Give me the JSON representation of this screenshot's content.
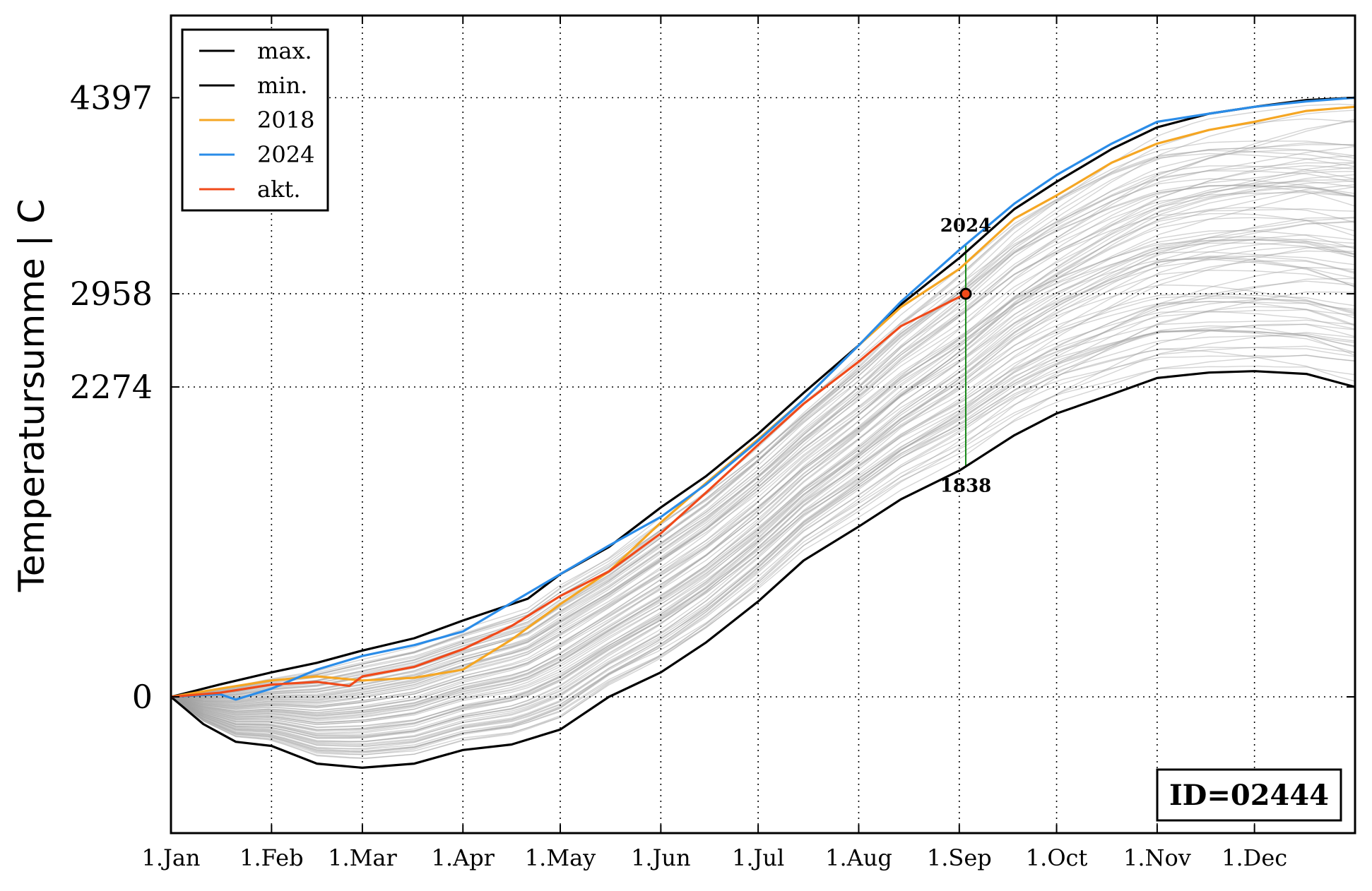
{
  "chart_data": {
    "type": "line",
    "title": "",
    "xlabel": "",
    "ylabel": "Temperatursumme | C",
    "x_ticks": [
      "1.Jan",
      "1.Feb",
      "1.Mar",
      "1.Apr",
      "1.May",
      "1.Jun",
      "1.Jul",
      "1.Aug",
      "1.Sep",
      "1.Oct",
      "1.Nov",
      "1.Dec"
    ],
    "x_tick_days": [
      0,
      31,
      59,
      90,
      120,
      151,
      181,
      212,
      243,
      273,
      304,
      334
    ],
    "x_range": [
      0,
      365
    ],
    "y_ticks": [
      0,
      2274,
      2958,
      4397
    ],
    "y_range": [
      -1000,
      5000
    ],
    "grid": "dotted",
    "legend_position": "top-left",
    "current_day": 245,
    "current_value": 2958,
    "annotations": {
      "top_label": "2024",
      "bottom_label": "1838"
    },
    "id_label": "ID=02444",
    "background_series_color": "#a0a0a0",
    "series": [
      {
        "name": "max.",
        "color": "#000000",
        "points": [
          [
            0,
            0
          ],
          [
            15,
            90
          ],
          [
            31,
            180
          ],
          [
            45,
            250
          ],
          [
            59,
            340
          ],
          [
            75,
            430
          ],
          [
            90,
            560
          ],
          [
            100,
            640
          ],
          [
            110,
            720
          ],
          [
            120,
            900
          ],
          [
            135,
            1100
          ],
          [
            151,
            1390
          ],
          [
            165,
            1620
          ],
          [
            181,
            1930
          ],
          [
            195,
            2230
          ],
          [
            212,
            2580
          ],
          [
            225,
            2880
          ],
          [
            243,
            3220
          ],
          [
            260,
            3580
          ],
          [
            273,
            3780
          ],
          [
            290,
            4020
          ],
          [
            304,
            4180
          ],
          [
            320,
            4280
          ],
          [
            334,
            4330
          ],
          [
            350,
            4380
          ],
          [
            365,
            4397
          ]
        ]
      },
      {
        "name": "min.",
        "color": "#000000",
        "points": [
          [
            0,
            0
          ],
          [
            10,
            -200
          ],
          [
            20,
            -330
          ],
          [
            31,
            -360
          ],
          [
            45,
            -490
          ],
          [
            59,
            -520
          ],
          [
            75,
            -490
          ],
          [
            90,
            -390
          ],
          [
            105,
            -350
          ],
          [
            120,
            -240
          ],
          [
            135,
            0
          ],
          [
            151,
            180
          ],
          [
            165,
            400
          ],
          [
            181,
            700
          ],
          [
            195,
            1000
          ],
          [
            212,
            1250
          ],
          [
            225,
            1450
          ],
          [
            243,
            1660
          ],
          [
            260,
            1920
          ],
          [
            273,
            2080
          ],
          [
            290,
            2220
          ],
          [
            304,
            2340
          ],
          [
            320,
            2380
          ],
          [
            334,
            2390
          ],
          [
            350,
            2370
          ],
          [
            365,
            2274
          ]
        ]
      },
      {
        "name": "2018",
        "color": "#f5a623",
        "points": [
          [
            0,
            0
          ],
          [
            15,
            60
          ],
          [
            31,
            120
          ],
          [
            45,
            150
          ],
          [
            59,
            120
          ],
          [
            75,
            140
          ],
          [
            90,
            200
          ],
          [
            105,
            420
          ],
          [
            120,
            680
          ],
          [
            135,
            920
          ],
          [
            151,
            1280
          ],
          [
            165,
            1570
          ],
          [
            181,
            1890
          ],
          [
            195,
            2180
          ],
          [
            212,
            2580
          ],
          [
            225,
            2860
          ],
          [
            243,
            3140
          ],
          [
            260,
            3510
          ],
          [
            273,
            3680
          ],
          [
            290,
            3920
          ],
          [
            304,
            4060
          ],
          [
            320,
            4160
          ],
          [
            334,
            4220
          ],
          [
            350,
            4300
          ],
          [
            365,
            4330
          ]
        ]
      },
      {
        "name": "2024",
        "color": "#2a8ce8",
        "points": [
          [
            0,
            0
          ],
          [
            15,
            20
          ],
          [
            20,
            -20
          ],
          [
            31,
            60
          ],
          [
            45,
            200
          ],
          [
            59,
            300
          ],
          [
            75,
            380
          ],
          [
            90,
            480
          ],
          [
            100,
            620
          ],
          [
            110,
            760
          ],
          [
            120,
            900
          ],
          [
            135,
            1110
          ],
          [
            151,
            1320
          ],
          [
            165,
            1560
          ],
          [
            181,
            1880
          ],
          [
            195,
            2180
          ],
          [
            212,
            2580
          ],
          [
            225,
            2900
          ],
          [
            243,
            3280
          ],
          [
            260,
            3620
          ],
          [
            273,
            3830
          ],
          [
            290,
            4060
          ],
          [
            304,
            4220
          ],
          [
            320,
            4280
          ],
          [
            334,
            4330
          ],
          [
            350,
            4370
          ],
          [
            365,
            4397
          ]
        ]
      },
      {
        "name": "akt.",
        "color": "#f04a1a",
        "points": [
          [
            0,
            0
          ],
          [
            15,
            30
          ],
          [
            31,
            90
          ],
          [
            45,
            110
          ],
          [
            55,
            80
          ],
          [
            59,
            150
          ],
          [
            75,
            220
          ],
          [
            90,
            350
          ],
          [
            105,
            520
          ],
          [
            120,
            740
          ],
          [
            135,
            920
          ],
          [
            151,
            1200
          ],
          [
            165,
            1500
          ],
          [
            181,
            1850
          ],
          [
            195,
            2150
          ],
          [
            212,
            2460
          ],
          [
            225,
            2720
          ],
          [
            245,
            2958
          ]
        ]
      }
    ]
  }
}
